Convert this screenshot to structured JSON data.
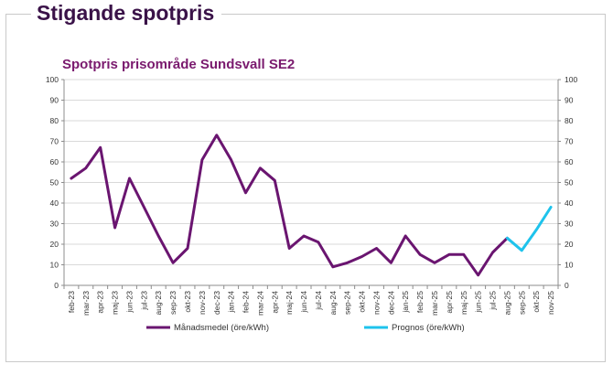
{
  "page": {
    "heading": "Stigande spotpris"
  },
  "colors": {
    "heading": "#3a1248",
    "chart_title": "#7a1a6e",
    "monthly": "#6a1570",
    "forecast": "#1ec3ec",
    "grid": "#d9d9d9"
  },
  "chart_data": {
    "type": "line",
    "title": "Spotpris prisområde Sundsvall SE2",
    "xlabel": "",
    "ylabel": "",
    "ylim": [
      0,
      100
    ],
    "yticks": [
      0,
      10,
      20,
      30,
      40,
      50,
      60,
      70,
      80,
      90,
      100
    ],
    "secondary_yticks": [
      0,
      10,
      20,
      30,
      40,
      50,
      60,
      70,
      80,
      90,
      100
    ],
    "grid": true,
    "legend_position": "bottom",
    "categories": [
      "feb-23",
      "mar-23",
      "apr-23",
      "maj-23",
      "jun-23",
      "jul-23",
      "aug-23",
      "sep-23",
      "okt-23",
      "nov-23",
      "dec-23",
      "jan-24",
      "feb-24",
      "mar-24",
      "apr-24",
      "maj-24",
      "jun-24",
      "jul-24",
      "aug-24",
      "sep-24",
      "okt-24",
      "nov-24",
      "dec-24",
      "jan-25",
      "feb-25",
      "mar-25",
      "apr-25",
      "maj-25",
      "jun-25",
      "jul-25",
      "aug-25",
      "sep-25",
      "okt-25",
      "nov-25"
    ],
    "series": [
      {
        "name": "Månadsmedel (öre/kWh)",
        "color": "#6a1570",
        "values": [
          52,
          57,
          67,
          28,
          52,
          38,
          24,
          11,
          18,
          61,
          73,
          61,
          45,
          57,
          51,
          18,
          24,
          21,
          9,
          11,
          14,
          18,
          11,
          24,
          15,
          11,
          15,
          15,
          5,
          16,
          23,
          null,
          null,
          null
        ]
      },
      {
        "name": "Prognos (öre/kWh)",
        "color": "#1ec3ec",
        "values": [
          null,
          null,
          null,
          null,
          null,
          null,
          null,
          null,
          null,
          null,
          null,
          null,
          null,
          null,
          null,
          null,
          null,
          null,
          null,
          null,
          null,
          null,
          null,
          null,
          null,
          null,
          null,
          null,
          null,
          null,
          23,
          17,
          27,
          38
        ]
      }
    ]
  }
}
